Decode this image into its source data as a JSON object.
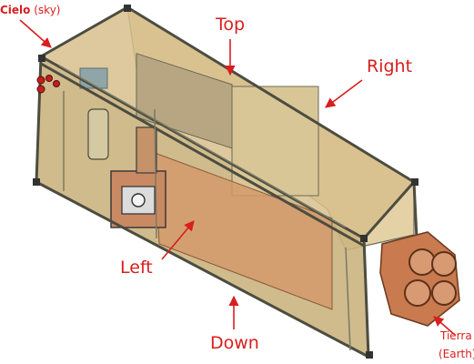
{
  "labels": {
    "cielo": "Cielo",
    "cielo_note": "(sky)",
    "top": "Top",
    "right": "Right",
    "left": "Left",
    "down": "Down",
    "tierra": "Tierra",
    "tierra_note": "(Earth)"
  },
  "colors": {
    "label": "#d81e1e",
    "frame_rail": "#5a5a4a",
    "panel_fill": "#c9b27a",
    "interior_copper": "#d09060",
    "camera_housing": "#c97a4e"
  }
}
